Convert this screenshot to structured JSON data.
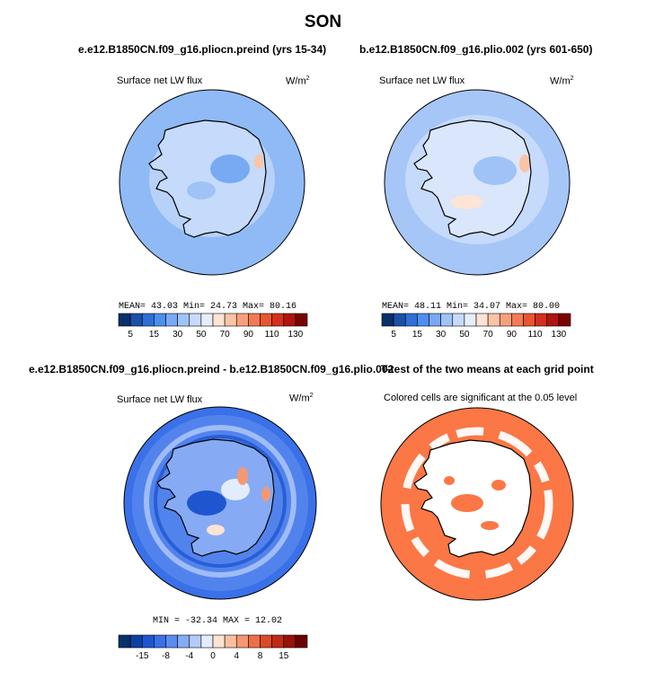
{
  "title": "SON",
  "panels": [
    {
      "title": "e.e12.B1850CN.f09_g16.pliocn.preind (yrs 15-34)",
      "variable": "Surface net LW flux",
      "units": "W/m",
      "units_sup": "2",
      "stats": "MEAN=  43.03   Min=  24.73   Max=  80.16",
      "colorbar_ticks": [
        "5",
        "15",
        "30",
        "50",
        "70",
        "90",
        "110",
        "130"
      ]
    },
    {
      "title": "b.e12.B1850CN.f09_g16.plio.002 (yrs 601-650)",
      "variable": "Surface net LW flux",
      "units": "W/m",
      "units_sup": "2",
      "stats": "MEAN=  48.11   Min=  34.07   Max=  80.00",
      "colorbar_ticks": [
        "5",
        "15",
        "30",
        "50",
        "70",
        "90",
        "110",
        "130"
      ]
    },
    {
      "title": "e.e12.B1850CN.f09_g16.pliocn.preind - b.e12.B1850CN.f09_g16.plio.002",
      "variable": "Surface net LW flux",
      "units": "W/m",
      "units_sup": "2",
      "stats": "MIN = -32.34  MAX =  12.02",
      "colorbar_ticks": [
        "-15",
        "-8",
        "-4",
        "0",
        "4",
        "8",
        "15"
      ]
    },
    {
      "title": "T-test of the two means at each grid point",
      "variable": "Colored cells are significant at the 0.05 level"
    }
  ],
  "colors": {
    "abs_scale": [
      "#08306b",
      "#1c4fa8",
      "#2f6fd6",
      "#4d8ff0",
      "#77aaf3",
      "#9fc3f7",
      "#c6dafb",
      "#e6eefc",
      "#fde4d4",
      "#fbc4a6",
      "#f7a07d",
      "#f27b55",
      "#e85530",
      "#d42f1c",
      "#b0140e",
      "#7a0403"
    ],
    "diff_scale": [
      "#08306b",
      "#0f3fa0",
      "#1f56d0",
      "#3a71e8",
      "#5c8cf0",
      "#86abf4",
      "#b3cbf8",
      "#e3ecfc",
      "#fde3d2",
      "#f9bfa1",
      "#f59872",
      "#ee7048",
      "#dc4a26",
      "#c12a16",
      "#981209",
      "#6b0202"
    ],
    "ttest": "#fb7745"
  }
}
